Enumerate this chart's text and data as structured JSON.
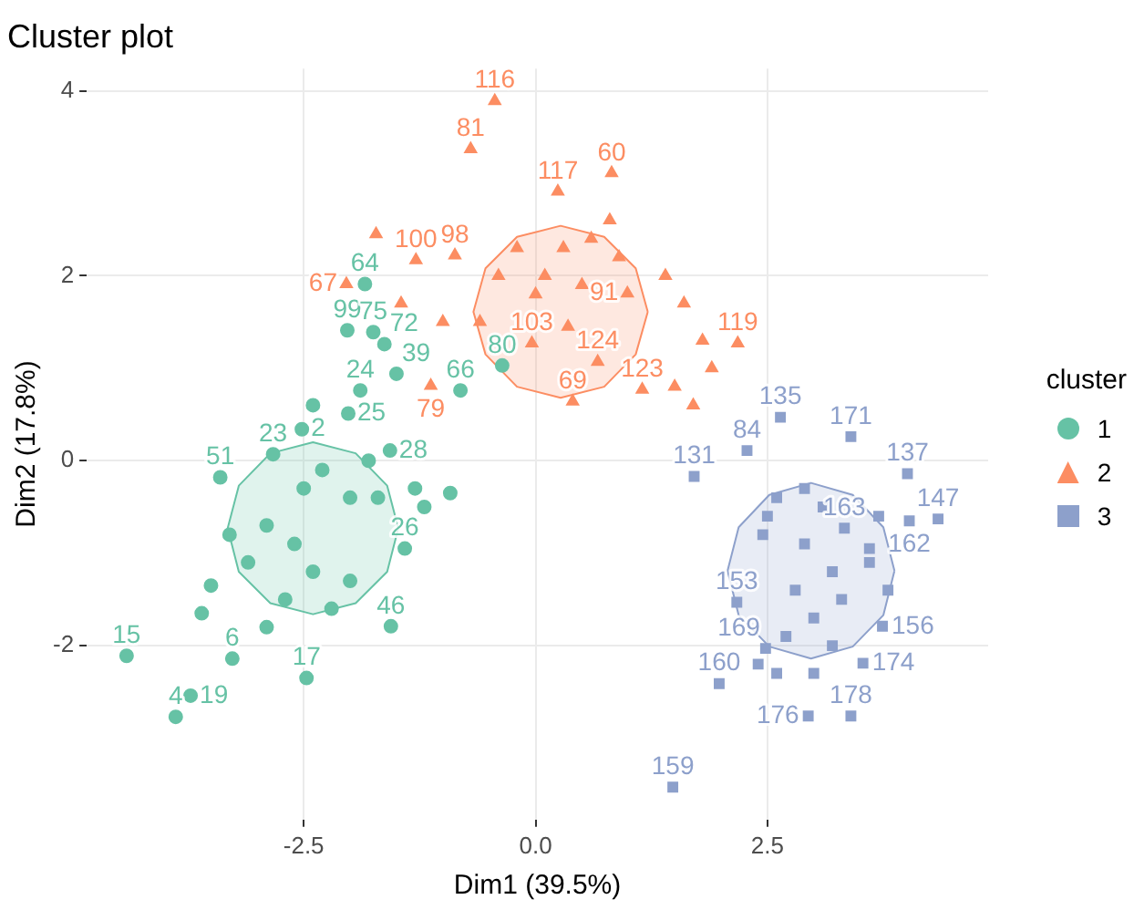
{
  "chart_data": {
    "type": "scatter",
    "title": "Cluster plot",
    "xlabel": "Dim1 (39.5%)",
    "ylabel": "Dim2 (17.8%)",
    "legend_title": "cluster",
    "legend": "right",
    "grid": true,
    "xlim": [
      -4.84,
      4.88
    ],
    "ylim": [
      -3.88,
      4.24
    ],
    "xticks": [
      {
        "value": -2.5,
        "label": "-2.5"
      },
      {
        "value": 0,
        "label": "0.0"
      },
      {
        "value": 2.5,
        "label": "2.5"
      }
    ],
    "yticks": [
      -2,
      0,
      2,
      4
    ],
    "series": [
      {
        "type": "area",
        "color": "#66c2a5",
        "x": [
          -1.48,
          -1.6,
          -1.94,
          -2.4,
          -2.86,
          -3.2,
          -3.32,
          -3.2,
          -2.86,
          -2.4,
          -1.94,
          -1.6,
          -1.48
        ],
        "values": [
          -0.73,
          -0.27,
          0.08,
          0.2,
          0.08,
          -0.27,
          -0.73,
          -1.2,
          -1.54,
          -1.66,
          -1.54,
          -1.2,
          -0.73
        ]
      },
      {
        "type": "area",
        "color": "#fc8d62",
        "x": [
          1.21,
          1.08,
          0.74,
          0.27,
          -0.2,
          -0.54,
          -0.67,
          -0.54,
          -0.2,
          0.27,
          0.74,
          1.08,
          1.21
        ],
        "values": [
          1.61,
          2.08,
          2.42,
          2.54,
          2.42,
          2.08,
          1.61,
          1.15,
          0.8,
          0.68,
          0.8,
          1.15,
          1.61
        ]
      },
      {
        "type": "area",
        "color": "#8da0cb",
        "x": [
          3.87,
          3.75,
          3.42,
          2.97,
          2.52,
          2.19,
          2.07,
          2.19,
          2.52,
          2.97,
          3.42,
          3.75,
          3.87
        ],
        "values": [
          -1.19,
          -0.72,
          -0.37,
          -0.24,
          -0.37,
          -0.72,
          -1.19,
          -1.67,
          -2.01,
          -2.14,
          -2.01,
          -1.67,
          -1.19
        ]
      },
      {
        "name": "1",
        "type": "scatter",
        "marker": "circle",
        "color": "#66c2a5",
        "x": [
          -4.41,
          -3.88,
          -3.72,
          -3.27,
          -2.47,
          -1.56,
          -3.4,
          -2.83,
          -1.5,
          -1.89,
          -0.81,
          -1.41,
          -2.03,
          -1.75,
          -1.63,
          -1.84,
          -0.36,
          -2.52,
          -2.02,
          -1.57,
          -2.9,
          -2.6,
          -2.4,
          -2.7,
          -2.2,
          -2.0,
          -3.1,
          -3.5,
          -3.6,
          -2.5,
          -1.7,
          -1.2,
          -2.0,
          -2.9,
          -3.3,
          -2.3,
          -1.8,
          -2.4,
          -1.3,
          -0.92
        ],
        "values": [
          -2.11,
          -2.77,
          -2.54,
          -2.14,
          -2.35,
          -1.79,
          -0.18,
          0.07,
          0.94,
          0.76,
          0.76,
          -0.95,
          1.41,
          1.39,
          1.26,
          1.91,
          1.03,
          0.34,
          0.51,
          0.11,
          -0.7,
          -0.9,
          -1.2,
          -1.5,
          -1.6,
          -0.4,
          -1.1,
          -1.35,
          -1.65,
          -0.3,
          -0.4,
          -0.5,
          -1.3,
          -1.8,
          -0.8,
          -0.1,
          0.0,
          0.6,
          -0.3,
          -0.35
        ]
      },
      {
        "name": "2",
        "type": "scatter",
        "marker": "triangle",
        "color": "#fc8d62",
        "x": [
          -0.44,
          -0.7,
          0.82,
          0.24,
          -0.87,
          -1.29,
          -2.04,
          -1.13,
          2.18,
          0.99,
          0.67,
          0.4,
          -0.04,
          1.15,
          0.1,
          0.5,
          0.3,
          0.6,
          0.8,
          -0.2,
          -0.6,
          -1.45,
          -1.72,
          -1.0,
          1.6,
          1.8,
          1.9,
          1.5,
          1.7,
          0.0,
          0.9,
          -0.4,
          1.4,
          0.35
        ],
        "values": [
          3.89,
          3.37,
          3.11,
          2.91,
          2.22,
          2.17,
          1.91,
          0.81,
          1.27,
          1.81,
          1.07,
          0.64,
          1.27,
          0.77,
          2.0,
          1.9,
          2.3,
          2.4,
          2.6,
          2.3,
          1.5,
          1.7,
          2.45,
          1.5,
          1.7,
          1.3,
          1.0,
          0.8,
          0.6,
          1.8,
          2.2,
          2.0,
          2.0,
          1.45
        ]
      },
      {
        "name": "3",
        "type": "scatter",
        "marker": "square",
        "color": "#8da0cb",
        "x": [
          2.64,
          3.4,
          2.28,
          1.71,
          4.01,
          4.34,
          4.03,
          2.17,
          1.98,
          1.48,
          3.4,
          2.94,
          3.74,
          3.53,
          2.48,
          3.33,
          2.6,
          2.9,
          3.1,
          3.6,
          2.5,
          2.9,
          3.2,
          2.8,
          3.0,
          2.7,
          3.3,
          3.8,
          3.6,
          2.6,
          3.0,
          3.2,
          2.45,
          3.7,
          2.4
        ],
        "values": [
          0.47,
          0.26,
          0.11,
          -0.17,
          -0.14,
          -0.63,
          -0.65,
          -1.53,
          -2.41,
          -3.53,
          -2.76,
          -2.76,
          -1.79,
          -2.19,
          -2.03,
          -0.73,
          -0.4,
          -0.3,
          -0.5,
          -0.95,
          -0.6,
          -0.9,
          -1.2,
          -1.4,
          -1.7,
          -1.9,
          -1.5,
          -1.4,
          -1.1,
          -2.3,
          -2.3,
          -2.0,
          -0.8,
          -0.6,
          -2.2
        ]
      }
    ],
    "annotations": [
      {
        "text": "15",
        "x": -4.41,
        "y": -2.11
      },
      {
        "text": "4",
        "x": -3.88,
        "y": -2.77
      },
      {
        "text": "19",
        "x": -3.72,
        "y": -2.54
      },
      {
        "text": "6",
        "x": -3.27,
        "y": -2.14
      },
      {
        "text": "17",
        "x": -2.47,
        "y": -2.35
      },
      {
        "text": "46",
        "x": -1.56,
        "y": -1.79
      },
      {
        "text": "51",
        "x": -3.4,
        "y": -0.18
      },
      {
        "text": "23",
        "x": -2.83,
        "y": 0.07
      },
      {
        "text": "39",
        "x": -1.5,
        "y": 0.94
      },
      {
        "text": "24",
        "x": -1.89,
        "y": 0.76
      },
      {
        "text": "66",
        "x": -0.81,
        "y": 0.76
      },
      {
        "text": "26",
        "x": -1.41,
        "y": -0.95
      },
      {
        "text": "99",
        "x": -2.03,
        "y": 1.41
      },
      {
        "text": "75",
        "x": -1.75,
        "y": 1.39
      },
      {
        "text": "72",
        "x": -1.63,
        "y": 1.26
      },
      {
        "text": "64",
        "x": -1.84,
        "y": 1.91
      },
      {
        "text": "80",
        "x": -0.36,
        "y": 1.03
      },
      {
        "text": "2",
        "x": -2.52,
        "y": 0.34
      },
      {
        "text": "25",
        "x": -2.02,
        "y": 0.51
      },
      {
        "text": "28",
        "x": -1.57,
        "y": 0.11
      },
      {
        "text": "116",
        "x": -0.44,
        "y": 3.89
      },
      {
        "text": "81",
        "x": -0.7,
        "y": 3.37
      },
      {
        "text": "60",
        "x": 0.82,
        "y": 3.11
      },
      {
        "text": "117",
        "x": 0.24,
        "y": 2.91
      },
      {
        "text": "98",
        "x": -0.87,
        "y": 2.22
      },
      {
        "text": "100",
        "x": -1.29,
        "y": 2.17
      },
      {
        "text": "67",
        "x": -2.04,
        "y": 1.91
      },
      {
        "text": "79",
        "x": -1.13,
        "y": 0.81
      },
      {
        "text": "119",
        "x": 2.18,
        "y": 1.27
      },
      {
        "text": "91",
        "x": 0.99,
        "y": 1.81
      },
      {
        "text": "124",
        "x": 0.67,
        "y": 1.07
      },
      {
        "text": "69",
        "x": 0.4,
        "y": 0.64
      },
      {
        "text": "103",
        "x": -0.04,
        "y": 1.27
      },
      {
        "text": "123",
        "x": 1.15,
        "y": 0.77
      },
      {
        "text": "135",
        "x": 2.64,
        "y": 0.47
      },
      {
        "text": "171",
        "x": 3.4,
        "y": 0.26
      },
      {
        "text": "84",
        "x": 2.28,
        "y": 0.11
      },
      {
        "text": "131",
        "x": 1.71,
        "y": -0.17
      },
      {
        "text": "137",
        "x": 4.01,
        "y": -0.14
      },
      {
        "text": "147",
        "x": 4.34,
        "y": -0.63
      },
      {
        "text": "162",
        "x": 4.03,
        "y": -0.65
      },
      {
        "text": "153",
        "x": 2.17,
        "y": -1.53
      },
      {
        "text": "160",
        "x": 1.98,
        "y": -2.41
      },
      {
        "text": "159",
        "x": 1.48,
        "y": -3.53
      },
      {
        "text": "178",
        "x": 3.4,
        "y": -2.76
      },
      {
        "text": "176",
        "x": 2.94,
        "y": -2.76
      },
      {
        "text": "156",
        "x": 3.74,
        "y": -1.79
      },
      {
        "text": "174",
        "x": 3.53,
        "y": -2.19
      },
      {
        "text": "169",
        "x": 2.48,
        "y": -2.03
      },
      {
        "text": "163",
        "x": 3.33,
        "y": -0.73
      }
    ]
  }
}
